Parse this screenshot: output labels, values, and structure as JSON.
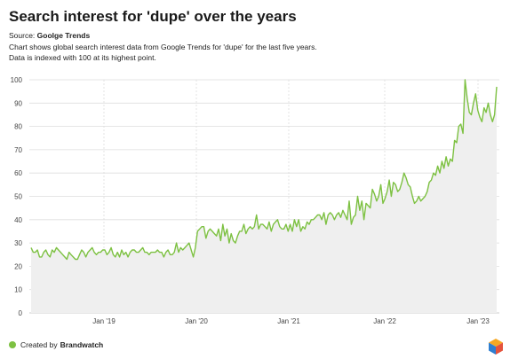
{
  "title": "Search interest for 'dupe' over the years",
  "source_label": "Source:",
  "source_name": "Goolge Trends",
  "description_line1": "Chart shows global search interest data from Google Trends for 'dupe' for the last five years.",
  "description_line2": "Data is indexed with 100 at its highest point.",
  "footer_text": "Created by",
  "footer_brand": "Brandwatch",
  "colors": {
    "line": "#7dc142",
    "area": "#efefef",
    "grid": "#dddddd",
    "footer_dot": "#7dc142"
  },
  "chart_data": {
    "type": "area",
    "x_tick_labels": [
      "Jan '19",
      "Jan '20",
      "Jan '21",
      "Jan '22",
      "Jan '23"
    ],
    "y_tick_labels": [
      "0",
      "10",
      "20",
      "30",
      "40",
      "50",
      "60",
      "70",
      "80",
      "90",
      "100"
    ],
    "ylim": [
      0,
      100
    ],
    "xlim": [
      "2018-03",
      "2023-03"
    ],
    "grid": true,
    "series": [
      {
        "values": [
          28,
          26,
          26,
          27,
          24,
          24,
          26,
          27,
          25,
          24,
          27,
          26,
          28,
          27,
          26,
          25,
          24,
          23,
          26,
          25,
          24,
          23,
          23,
          25,
          27,
          26,
          24,
          26,
          27,
          28,
          26,
          25,
          26,
          26,
          27,
          27,
          25,
          26,
          28,
          25,
          24,
          26,
          24,
          27,
          25,
          26,
          24,
          26,
          27,
          27,
          26,
          26,
          27,
          28,
          26,
          26,
          25,
          26,
          26,
          26,
          27,
          26,
          26,
          24,
          26,
          27,
          25,
          25,
          26,
          30,
          26,
          28,
          27,
          28,
          29,
          30,
          27,
          24,
          28,
          35,
          36,
          37,
          37,
          32,
          35,
          36,
          35,
          34,
          33,
          36,
          31,
          38,
          33,
          36,
          30,
          34,
          31,
          30,
          33,
          35,
          35,
          38,
          34,
          36,
          37,
          36,
          37,
          42,
          36,
          38,
          38,
          37,
          36,
          39,
          35,
          38,
          39,
          40,
          37,
          36,
          36,
          38,
          35,
          38,
          35,
          40,
          37,
          40,
          35,
          37,
          36,
          39,
          38,
          40,
          40,
          41,
          42,
          42,
          40,
          43,
          38,
          42,
          43,
          42,
          40,
          42,
          43,
          41,
          44,
          42,
          40,
          48,
          38,
          41,
          42,
          50,
          44,
          48,
          40,
          47,
          46,
          45,
          53,
          51,
          48,
          50,
          55,
          47,
          49,
          52,
          57,
          50,
          56,
          55,
          52,
          53,
          56,
          60,
          58,
          55,
          54,
          50,
          47,
          48,
          50,
          48,
          49,
          50,
          52,
          56,
          57,
          60,
          59,
          63,
          60,
          65,
          62,
          67,
          63,
          66,
          65,
          74,
          73,
          80,
          81,
          77,
          100,
          92,
          86,
          85,
          90,
          94,
          87,
          84,
          82,
          88,
          86,
          90,
          85,
          82,
          85,
          97
        ]
      }
    ]
  }
}
